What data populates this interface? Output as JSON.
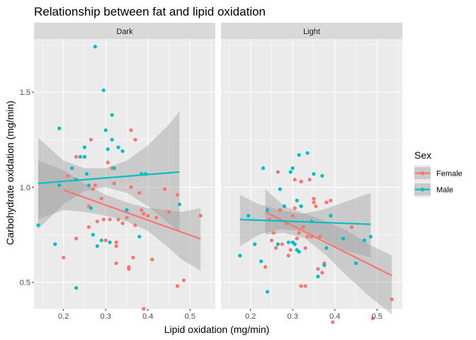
{
  "chart_data": {
    "type": "scatter",
    "title": "Relationship between fat and lipid oxidation",
    "xlabel": "Lipid oxidation (mg/min)",
    "ylabel": "Carbohydrate oxidation (mg/min)",
    "xlim": [
      0.13,
      0.56
    ],
    "ylim": [
      0.36,
      1.78
    ],
    "xticks": [
      0.2,
      0.3,
      0.4,
      0.5
    ],
    "xtick_labels": [
      "0.2",
      "0.3",
      "0.4",
      "0.5"
    ],
    "yticks": [
      0.5,
      1.0,
      1.5
    ],
    "ytick_labels": [
      "0.5",
      "1.0",
      "1.5"
    ],
    "grid": true,
    "legend": {
      "title": "Sex",
      "position": "right",
      "entries": [
        {
          "name": "Female",
          "color": "#F8766D"
        },
        {
          "name": "Male",
          "color": "#00BFC4"
        }
      ]
    },
    "panels": [
      {
        "label": "Dark",
        "series": [
          {
            "name": "Female",
            "color": "#F8766D",
            "points": [
              [
                0.2,
                0.63
              ],
              [
                0.21,
                1.06
              ],
              [
                0.23,
                1.16
              ],
              [
                0.23,
                0.73
              ],
              [
                0.25,
                1.16
              ],
              [
                0.26,
                0.9
              ],
              [
                0.26,
                0.79
              ],
              [
                0.265,
                1.25
              ],
              [
                0.27,
                0.99
              ],
              [
                0.275,
                1.01
              ],
              [
                0.28,
                0.82
              ],
              [
                0.29,
                0.94
              ],
              [
                0.295,
                0.83
              ],
              [
                0.3,
                0.72
              ],
              [
                0.305,
                1.13
              ],
              [
                0.31,
                0.83
              ],
              [
                0.315,
                1.1
              ],
              [
                0.32,
                1.02
              ],
              [
                0.325,
                0.71
              ],
              [
                0.325,
                0.69
              ],
              [
                0.325,
                0.6
              ],
              [
                0.33,
                0.83
              ],
              [
                0.34,
                0.81
              ],
              [
                0.35,
                0.84
              ],
              [
                0.355,
                0.58
              ],
              [
                0.355,
                0.57
              ],
              [
                0.36,
                1.0
              ],
              [
                0.36,
                1.3
              ],
              [
                0.365,
                0.63
              ],
              [
                0.37,
                1.25
              ],
              [
                0.37,
                0.8
              ],
              [
                0.38,
                0.97
              ],
              [
                0.385,
                0.88
              ],
              [
                0.39,
                0.86
              ],
              [
                0.39,
                0.36
              ],
              [
                0.4,
                0.85
              ],
              [
                0.41,
                0.62
              ],
              [
                0.42,
                0.84
              ],
              [
                0.44,
                0.99
              ],
              [
                0.45,
                0.87
              ],
              [
                0.47,
                0.96
              ],
              [
                0.47,
                0.48
              ],
              [
                0.485,
                0.51
              ],
              [
                0.525,
                0.85
              ]
            ],
            "fit": {
              "x": [
                0.2,
                0.525
              ],
              "y": [
                0.985,
                0.728
              ]
            }
          },
          {
            "name": "Male",
            "color": "#00BFC4",
            "points": [
              [
                0.14,
                0.8
              ],
              [
                0.18,
                0.7
              ],
              [
                0.19,
                1.31
              ],
              [
                0.19,
                1.01
              ],
              [
                0.22,
                1.1
              ],
              [
                0.23,
                1.04
              ],
              [
                0.23,
                0.47
              ],
              [
                0.24,
                1.16
              ],
              [
                0.25,
                1.21
              ],
              [
                0.25,
                1.16
              ],
              [
                0.255,
                1.07
              ],
              [
                0.26,
                1.01
              ],
              [
                0.265,
                0.89
              ],
              [
                0.27,
                0.75
              ],
              [
                0.275,
                1.74
              ],
              [
                0.28,
                0.69
              ],
              [
                0.29,
                0.72
              ],
              [
                0.295,
                1.51
              ],
              [
                0.3,
                1.3
              ],
              [
                0.305,
                1.2
              ],
              [
                0.31,
                0.71
              ],
              [
                0.315,
                1.25
              ],
              [
                0.315,
                1.38
              ],
              [
                0.32,
                1.1
              ],
              [
                0.33,
                1.21
              ],
              [
                0.34,
                1.19
              ],
              [
                0.35,
                0.88
              ],
              [
                0.38,
                0.74
              ],
              [
                0.385,
                1.07
              ],
              [
                0.395,
                1.07
              ],
              [
                0.475,
                0.91
              ]
            ],
            "fit": {
              "x": [
                0.14,
                0.475
              ],
              "y": [
                1.02,
                1.08
              ]
            }
          }
        ],
        "bands": [
          {
            "series": "Female",
            "upper": [
              [
                0.14,
                1.14
              ],
              [
                0.2,
                1.09
              ],
              [
                0.25,
                1.02
              ],
              [
                0.3,
                0.96
              ],
              [
                0.35,
                0.92
              ],
              [
                0.4,
                0.89
              ],
              [
                0.45,
                0.88
              ],
              [
                0.48,
                0.87
              ],
              [
                0.525,
                0.89
              ]
            ],
            "lower": [
              [
                0.14,
                0.83
              ],
              [
                0.2,
                0.88
              ],
              [
                0.25,
                0.87
              ],
              [
                0.3,
                0.85
              ],
              [
                0.35,
                0.82
              ],
              [
                0.4,
                0.77
              ],
              [
                0.45,
                0.68
              ],
              [
                0.48,
                0.62
              ],
              [
                0.525,
                0.56
              ]
            ]
          },
          {
            "series": "Male",
            "upper": [
              [
                0.14,
                1.26
              ],
              [
                0.2,
                1.14
              ],
              [
                0.25,
                1.1
              ],
              [
                0.3,
                1.1
              ],
              [
                0.35,
                1.14
              ],
              [
                0.4,
                1.22
              ],
              [
                0.45,
                1.33
              ],
              [
                0.475,
                1.4
              ]
            ],
            "lower": [
              [
                0.14,
                0.78
              ],
              [
                0.2,
                0.91
              ],
              [
                0.25,
                0.98
              ],
              [
                0.3,
                1.0
              ],
              [
                0.35,
                0.97
              ],
              [
                0.4,
                0.9
              ],
              [
                0.45,
                0.81
              ],
              [
                0.475,
                0.76
              ]
            ]
          }
        ]
      },
      {
        "label": "Light",
        "series": [
          {
            "name": "Female",
            "color": "#F8766D",
            "points": [
              [
                0.235,
                0.58
              ],
              [
                0.245,
                0.83
              ],
              [
                0.25,
                0.72
              ],
              [
                0.255,
                0.76
              ],
              [
                0.26,
                0.68
              ],
              [
                0.265,
                1.08
              ],
              [
                0.27,
                0.88
              ],
              [
                0.275,
                0.7
              ],
              [
                0.28,
                0.9
              ],
              [
                0.285,
                0.81
              ],
              [
                0.29,
                0.64
              ],
              [
                0.295,
                0.67
              ],
              [
                0.3,
                0.85
              ],
              [
                0.305,
                1.04
              ],
              [
                0.305,
                0.89
              ],
              [
                0.31,
                0.73
              ],
              [
                0.315,
                0.76
              ],
              [
                0.32,
                1.03
              ],
              [
                0.32,
                0.48
              ],
              [
                0.325,
                0.79
              ],
              [
                0.33,
                0.68
              ],
              [
                0.33,
                0.48
              ],
              [
                0.335,
                0.74
              ],
              [
                0.34,
                1.04
              ],
              [
                0.345,
                0.74
              ],
              [
                0.35,
                0.94
              ],
              [
                0.35,
                0.92
              ],
              [
                0.355,
                0.9
              ],
              [
                0.36,
                0.57
              ],
              [
                0.365,
                0.74
              ],
              [
                0.37,
                0.55
              ],
              [
                0.375,
                0.6
              ],
              [
                0.375,
                0.59
              ],
              [
                0.38,
                0.92
              ],
              [
                0.39,
                0.93
              ],
              [
                0.395,
                0.29
              ],
              [
                0.44,
                0.79
              ],
              [
                0.49,
                0.31
              ],
              [
                0.535,
                0.41
              ]
            ],
            "fit": {
              "x": [
                0.235,
                0.535
              ],
              "y": [
                0.87,
                0.535
              ]
            }
          },
          {
            "name": "Male",
            "color": "#00BFC4",
            "points": [
              [
                0.175,
                0.64
              ],
              [
                0.195,
                0.85
              ],
              [
                0.21,
                0.7
              ],
              [
                0.225,
                0.61
              ],
              [
                0.23,
                1.1
              ],
              [
                0.24,
                0.88
              ],
              [
                0.24,
                0.45
              ],
              [
                0.265,
                0.7
              ],
              [
                0.27,
                0.99
              ],
              [
                0.28,
                0.9
              ],
              [
                0.29,
                0.71
              ],
              [
                0.295,
                1.08
              ],
              [
                0.3,
                0.71
              ],
              [
                0.3,
                1.1
              ],
              [
                0.305,
                0.7
              ],
              [
                0.31,
                0.93
              ],
              [
                0.31,
                0.67
              ],
              [
                0.315,
                0.66
              ],
              [
                0.315,
                1.17
              ],
              [
                0.32,
                0.9
              ],
              [
                0.335,
                1.18
              ],
              [
                0.345,
                0.82
              ],
              [
                0.35,
                1.07
              ],
              [
                0.36,
                0.53
              ],
              [
                0.37,
                1.06
              ],
              [
                0.375,
                0.59
              ],
              [
                0.38,
                0.68
              ],
              [
                0.39,
                0.85
              ],
              [
                0.42,
                0.73
              ],
              [
                0.45,
                0.6
              ],
              [
                0.47,
                0.72
              ],
              [
                0.485,
                0.74
              ]
            ],
            "fit": {
              "x": [
                0.175,
                0.485
              ],
              "y": [
                0.83,
                0.805
              ]
            }
          }
        ],
        "bands": [
          {
            "series": "Female",
            "upper": [
              [
                0.235,
                0.99
              ],
              [
                0.28,
                0.9
              ],
              [
                0.33,
                0.86
              ],
              [
                0.38,
                0.82
              ],
              [
                0.43,
                0.77
              ],
              [
                0.48,
                0.7
              ],
              [
                0.535,
                0.64
              ]
            ],
            "lower": [
              [
                0.235,
                0.75
              ],
              [
                0.28,
                0.76
              ],
              [
                0.33,
                0.73
              ],
              [
                0.38,
                0.64
              ],
              [
                0.43,
                0.53
              ],
              [
                0.48,
                0.43
              ],
              [
                0.535,
                0.33
              ]
            ]
          },
          {
            "series": "Male",
            "upper": [
              [
                0.175,
                0.96
              ],
              [
                0.22,
                0.91
              ],
              [
                0.27,
                0.88
              ],
              [
                0.32,
                0.86
              ],
              [
                0.37,
                0.88
              ],
              [
                0.42,
                0.92
              ],
              [
                0.485,
                0.97
              ]
            ],
            "lower": [
              [
                0.175,
                0.69
              ],
              [
                0.22,
                0.75
              ],
              [
                0.27,
                0.78
              ],
              [
                0.32,
                0.77
              ],
              [
                0.37,
                0.73
              ],
              [
                0.42,
                0.67
              ],
              [
                0.485,
                0.63
              ]
            ]
          }
        ]
      }
    ]
  }
}
